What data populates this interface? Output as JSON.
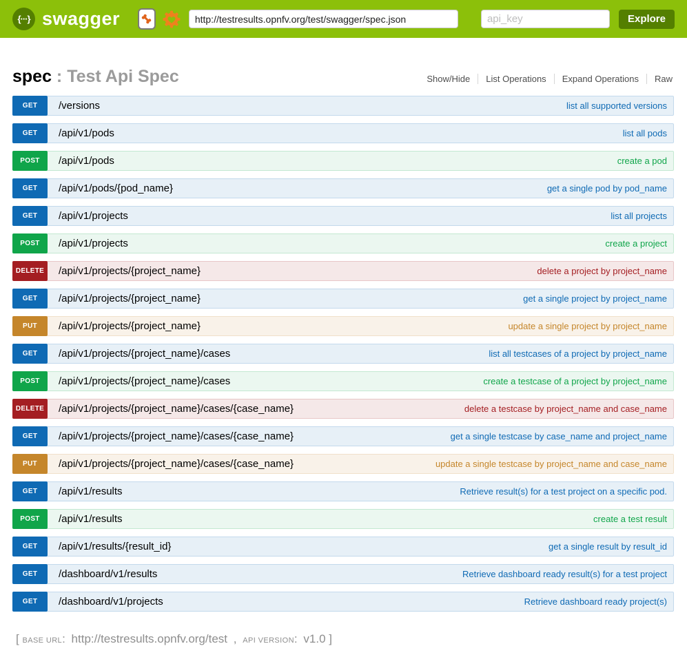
{
  "header": {
    "brand": "swagger",
    "logo_glyph": "{···}",
    "url_input_value": "http://testresults.opnfv.org/test/swagger/spec.json",
    "api_key_placeholder": "api_key",
    "explore_label": "Explore"
  },
  "titlebar": {
    "name": "spec",
    "separator": " : ",
    "subtitle": "Test Api Spec",
    "actions": [
      "Show/Hide",
      "List Operations",
      "Expand Operations",
      "Raw"
    ]
  },
  "endpoints": [
    {
      "method": "GET",
      "path": "/versions",
      "description": "list all supported versions"
    },
    {
      "method": "GET",
      "path": "/api/v1/pods",
      "description": "list all pods"
    },
    {
      "method": "POST",
      "path": "/api/v1/pods",
      "description": "create a pod"
    },
    {
      "method": "GET",
      "path": "/api/v1/pods/{pod_name}",
      "description": "get a single pod by pod_name"
    },
    {
      "method": "GET",
      "path": "/api/v1/projects",
      "description": "list all projects"
    },
    {
      "method": "POST",
      "path": "/api/v1/projects",
      "description": "create a project"
    },
    {
      "method": "DELETE",
      "path": "/api/v1/projects/{project_name}",
      "description": "delete a project by project_name"
    },
    {
      "method": "GET",
      "path": "/api/v1/projects/{project_name}",
      "description": "get a single project by project_name"
    },
    {
      "method": "PUT",
      "path": "/api/v1/projects/{project_name}",
      "description": "update a single project by project_name"
    },
    {
      "method": "GET",
      "path": "/api/v1/projects/{project_name}/cases",
      "description": "list all testcases of a project by project_name"
    },
    {
      "method": "POST",
      "path": "/api/v1/projects/{project_name}/cases",
      "description": "create a testcase of a project by project_name"
    },
    {
      "method": "DELETE",
      "path": "/api/v1/projects/{project_name}/cases/{case_name}",
      "description": "delete a testcase by project_name and case_name"
    },
    {
      "method": "GET",
      "path": "/api/v1/projects/{project_name}/cases/{case_name}",
      "description": "get a single testcase by case_name and project_name"
    },
    {
      "method": "PUT",
      "path": "/api/v1/projects/{project_name}/cases/{case_name}",
      "description": "update a single testcase by project_name and case_name"
    },
    {
      "method": "GET",
      "path": "/api/v1/results",
      "description": "Retrieve result(s) for a test project on a specific pod."
    },
    {
      "method": "POST",
      "path": "/api/v1/results",
      "description": "create a test result"
    },
    {
      "method": "GET",
      "path": "/api/v1/results/{result_id}",
      "description": "get a single result by result_id"
    },
    {
      "method": "GET",
      "path": "/dashboard/v1/results",
      "description": "Retrieve dashboard ready result(s) for a test project"
    },
    {
      "method": "GET",
      "path": "/dashboard/v1/projects",
      "description": "Retrieve dashboard ready project(s)"
    }
  ],
  "footer": {
    "bracket_open": "[",
    "base_url_label": "base url",
    "colon1": ":",
    "base_url": "http://testresults.opnfv.org/test",
    "comma": ",",
    "api_version_label": "api version",
    "colon2": ":",
    "api_version": "v1.0",
    "bracket_close": "]"
  },
  "colors": {
    "header_green": "#8cc00a",
    "brand_dark_green": "#547f00",
    "icon_orange": "#e0641b",
    "gear_orange": "#ef811d",
    "get_blue": "#0f6ab4",
    "post_green": "#10a54a",
    "delete_red": "#a41e22",
    "put_gold": "#c5862b"
  }
}
